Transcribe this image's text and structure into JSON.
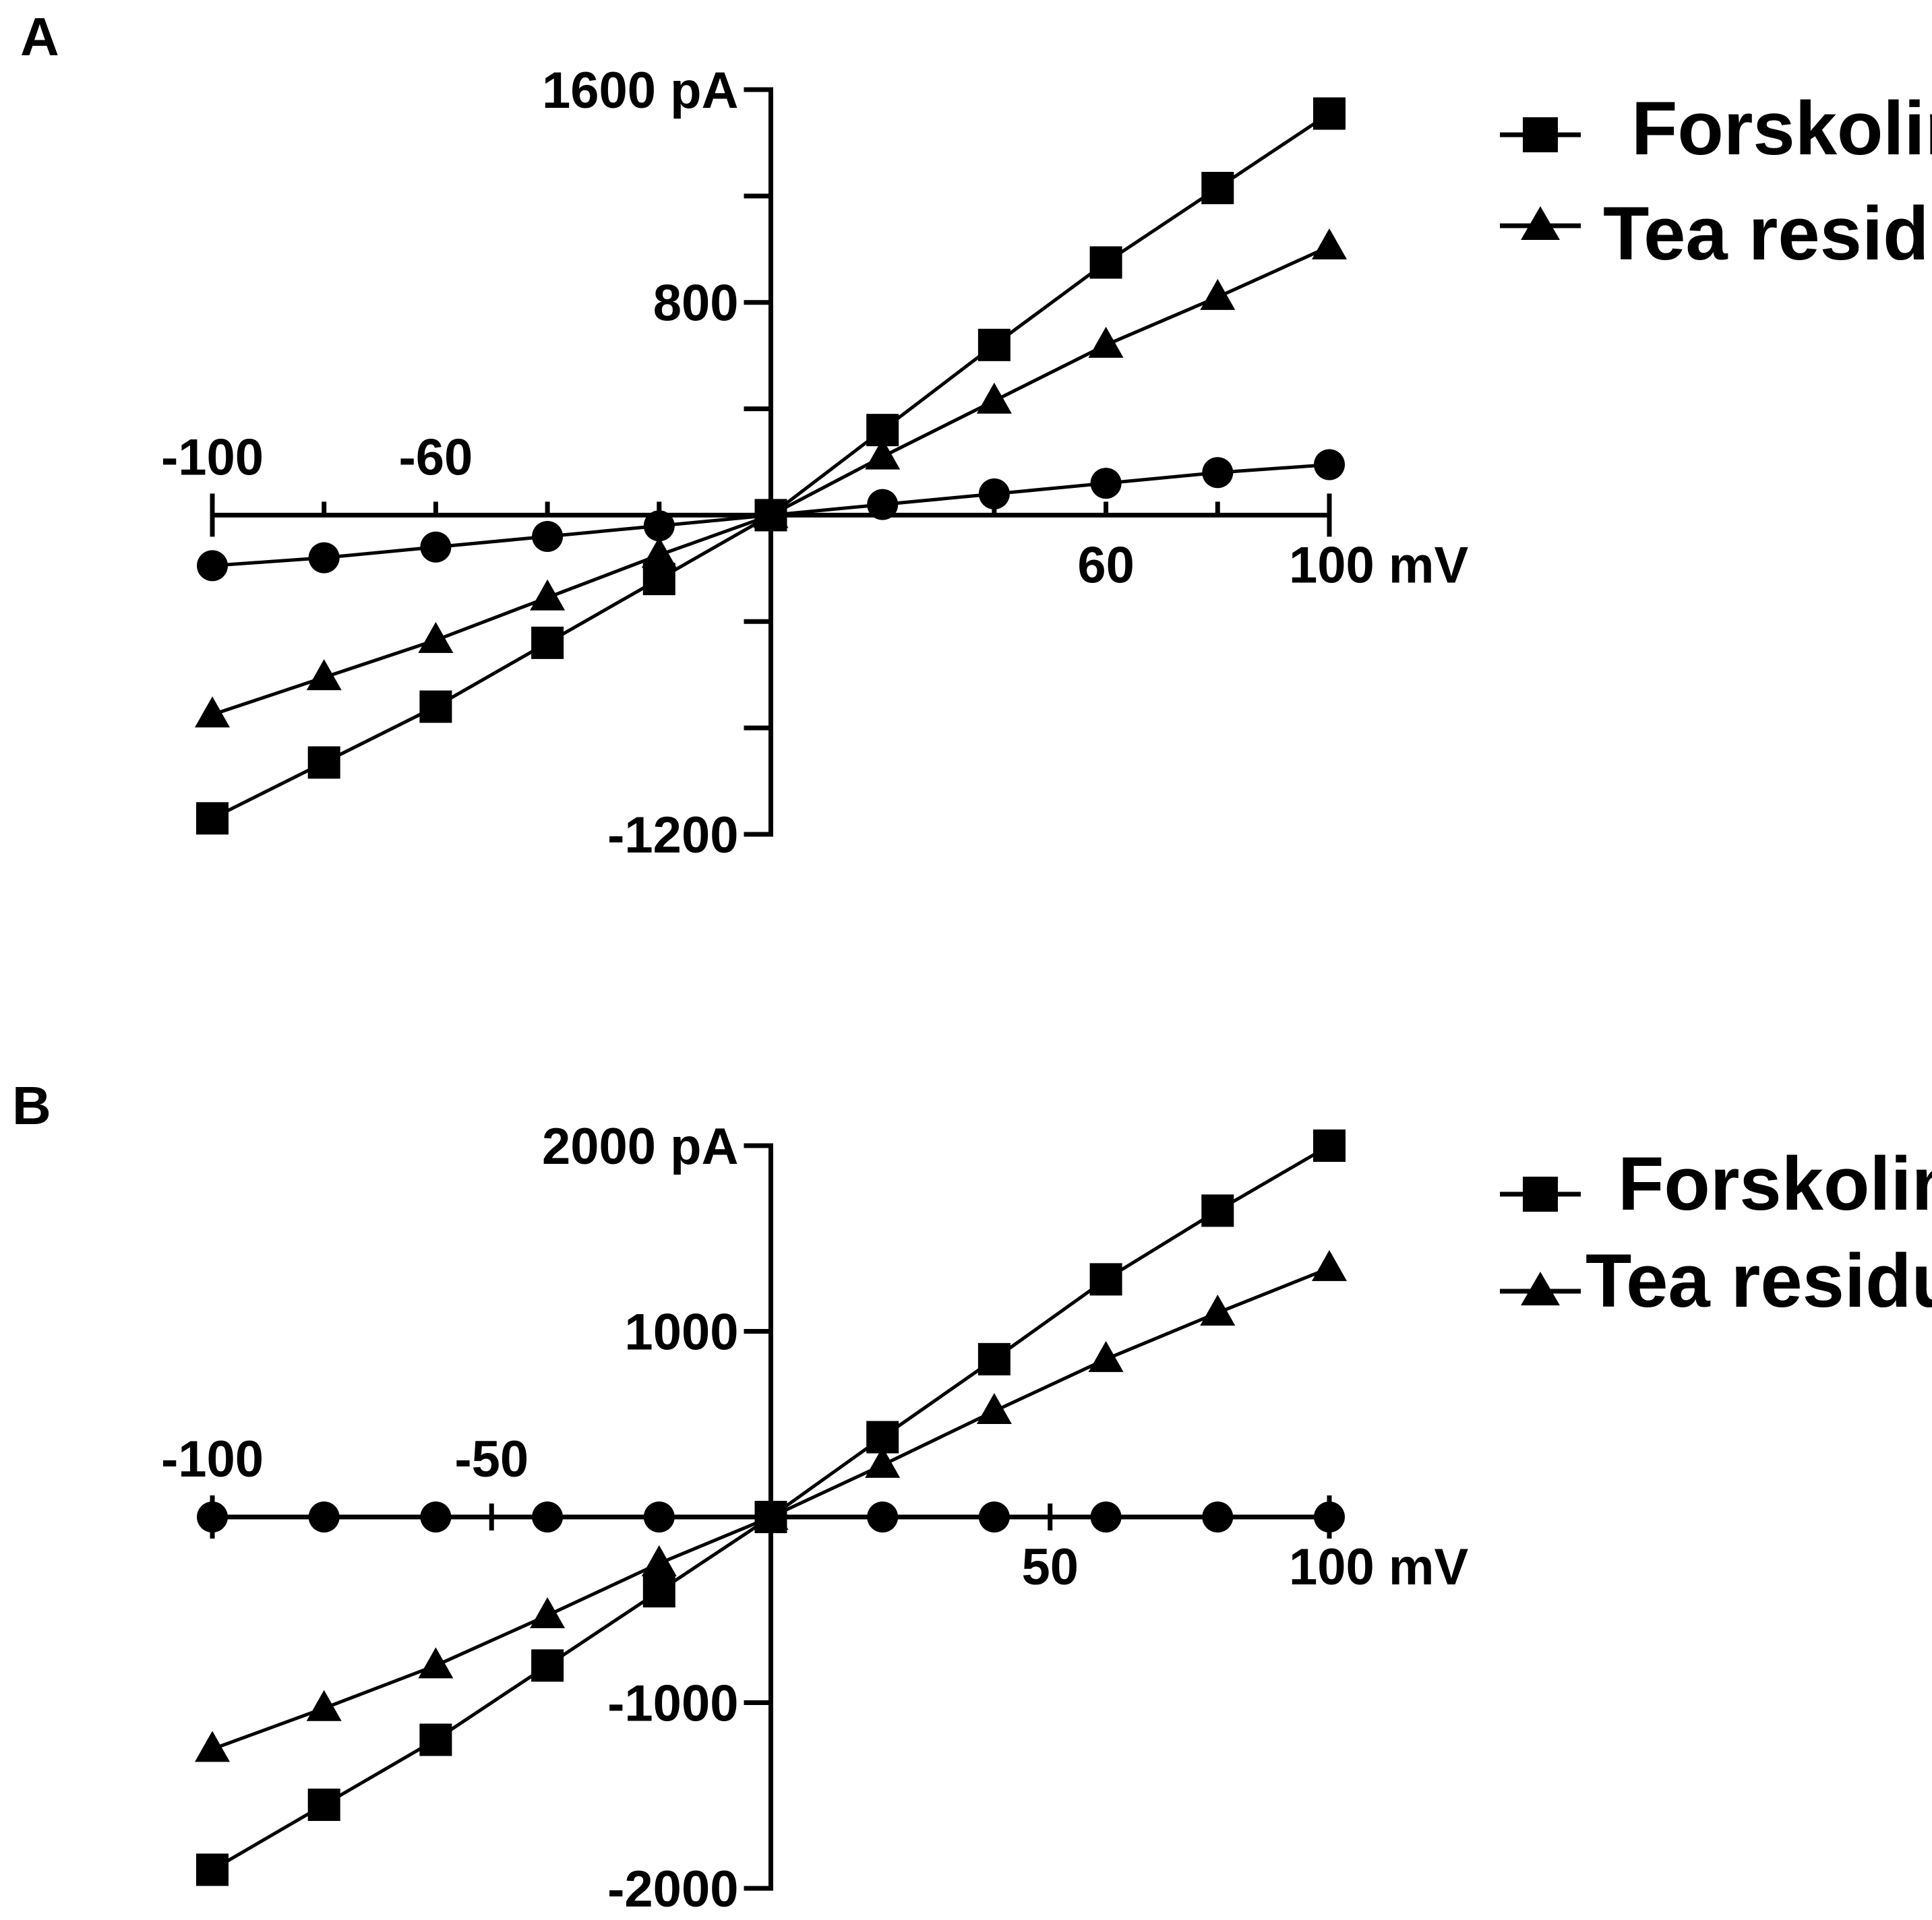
{
  "chart_data": [
    {
      "type": "line",
      "panel_label": "A",
      "x": [
        -100,
        -80,
        -60,
        -40,
        -20,
        0,
        20,
        40,
        60,
        80,
        100
      ],
      "xlim": [
        -100,
        100
      ],
      "ylim": [
        -1200,
        1600
      ],
      "x_tick_values": [
        -100,
        -80,
        -60,
        -40,
        -20,
        20,
        40,
        60,
        80,
        100
      ],
      "y_tick_values": [
        1600,
        1200,
        800,
        400,
        -400,
        -800,
        -1200
      ],
      "x_tick_labels": [
        {
          "value": -100,
          "text": "-100",
          "side": "above"
        },
        {
          "value": -60,
          "text": "-60",
          "side": "above"
        },
        {
          "value": 60,
          "text": "60",
          "side": "below"
        },
        {
          "value": 100,
          "text": "100 mV",
          "side": "below"
        }
      ],
      "y_tick_labels": [
        {
          "value": 1600,
          "text": "1600 pA"
        },
        {
          "value": 800,
          "text": "800"
        },
        {
          "value": -1200,
          "text": "-1200"
        }
      ],
      "series": [
        {
          "name": "Forskolin",
          "marker": "square",
          "values": [
            -1140,
            -930,
            -720,
            -480,
            -240,
            0,
            320,
            640,
            950,
            1230,
            1510
          ]
        },
        {
          "name": "Tea residue",
          "marker": "triangle",
          "values": [
            -750,
            -610,
            -470,
            -310,
            -150,
            0,
            220,
            430,
            640,
            820,
            1010
          ]
        },
        {
          "name": "",
          "marker": "circle",
          "values": [
            -190,
            -160,
            -120,
            -80,
            -40,
            0,
            40,
            80,
            120,
            160,
            190
          ]
        }
      ],
      "legend": {
        "position": "top-right",
        "entries": [
          "Forskolin",
          "Tea residue"
        ]
      }
    },
    {
      "type": "line",
      "panel_label": "B",
      "x": [
        -100,
        -80,
        -60,
        -40,
        -20,
        0,
        20,
        40,
        60,
        80,
        100
      ],
      "xlim": [
        -100,
        100
      ],
      "ylim": [
        -2000,
        2000
      ],
      "x_tick_values": [
        -100,
        -50,
        50,
        100
      ],
      "y_tick_values": [
        2000,
        1000,
        -1000,
        -2000
      ],
      "x_tick_labels": [
        {
          "value": -100,
          "text": "-100",
          "side": "above"
        },
        {
          "value": -50,
          "text": "-50",
          "side": "above"
        },
        {
          "value": 50,
          "text": "50",
          "side": "below"
        },
        {
          "value": 100,
          "text": "100 mV",
          "side": "below"
        }
      ],
      "y_tick_labels": [
        {
          "value": 2000,
          "text": "2000 pA"
        },
        {
          "value": 1000,
          "text": "1000"
        },
        {
          "value": -1000,
          "text": "-1000"
        },
        {
          "value": -2000,
          "text": "-2000"
        }
      ],
      "series": [
        {
          "name": "Forskolin",
          "marker": "square",
          "values": [
            -1900,
            -1550,
            -1200,
            -800,
            -400,
            0,
            430,
            850,
            1280,
            1650,
            2000
          ]
        },
        {
          "name": "Tea residue",
          "marker": "triangle",
          "values": [
            -1250,
            -1030,
            -800,
            -530,
            -250,
            0,
            280,
            570,
            850,
            1100,
            1340
          ]
        },
        {
          "name": "",
          "marker": "circle",
          "values": [
            0,
            0,
            0,
            0,
            0,
            0,
            0,
            0,
            0,
            0,
            0
          ]
        }
      ],
      "legend": {
        "position": "top-right",
        "entries": [
          "Forskolin",
          "Tea residue"
        ]
      }
    }
  ]
}
